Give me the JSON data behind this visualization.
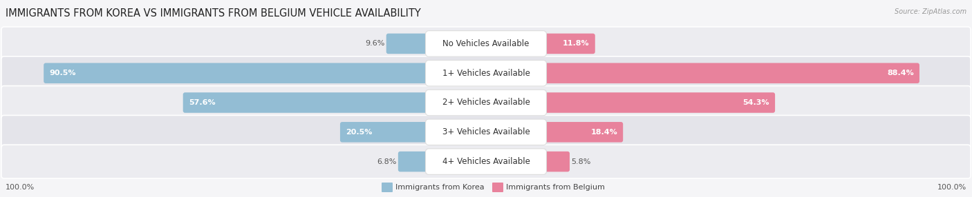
{
  "title": "IMMIGRANTS FROM KOREA VS IMMIGRANTS FROM BELGIUM VEHICLE AVAILABILITY",
  "source": "Source: ZipAtlas.com",
  "categories": [
    "No Vehicles Available",
    "1+ Vehicles Available",
    "2+ Vehicles Available",
    "3+ Vehicles Available",
    "4+ Vehicles Available"
  ],
  "korea_values": [
    9.6,
    90.5,
    57.6,
    20.5,
    6.8
  ],
  "belgium_values": [
    11.8,
    88.4,
    54.3,
    18.4,
    5.8
  ],
  "korea_color": "#93bdd4",
  "belgium_color": "#e8829c",
  "row_bg_even": "#ececf0",
  "row_bg_odd": "#e4e4ea",
  "fig_bg": "#f5f5f7",
  "max_value": 100.0,
  "figsize": [
    14.06,
    2.86
  ],
  "dpi": 100,
  "title_fontsize": 10.5,
  "label_fontsize": 8,
  "category_fontsize": 8.5
}
